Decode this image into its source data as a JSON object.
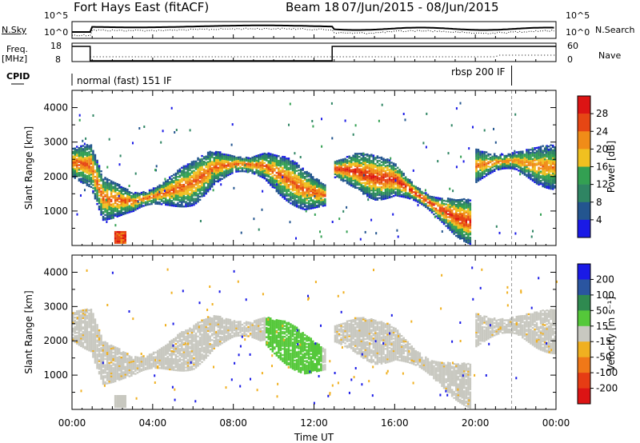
{
  "header": {
    "station": "Fort Hays East (fitACF)",
    "beam": "Beam 18",
    "dates": "07/Jun/2015 - 08/Jun/2015"
  },
  "side_labels": {
    "nsky": "N.Sky",
    "nsearch": "N.Search",
    "freq": "Freq.",
    "freq_unit": "[MHz]",
    "nave": "Nave",
    "cpid": "CPID",
    "nsky_ticks": [
      "10^5",
      "10^0"
    ],
    "nsearch_ticks": [
      "10^5",
      "10^0"
    ],
    "freq_ticks": [
      "18",
      "8"
    ],
    "nave_ticks": [
      "60",
      "0"
    ]
  },
  "cpid_labels": {
    "mode1": "normal (fast) 151 IF",
    "mode2": "rbsp 200 IF"
  },
  "colors": {
    "power": [
      "#1a1ae6",
      "#23558f",
      "#2f8563",
      "#33a052",
      "#f0c020",
      "#f08c18",
      "#e64614",
      "#dc1414"
    ],
    "velocity": [
      "#1a1ae6",
      "#2a55a0",
      "#2f8a50",
      "#55c83a",
      "#c8c8c0",
      "#f0b020",
      "#f07818",
      "#e63c14",
      "#dc1414"
    ]
  },
  "chart_data": [
    {
      "type": "line",
      "panel": "sky-noise-and-search-noise",
      "x_unit": "hours UT",
      "x_range": [
        0,
        24
      ],
      "series_ticks_left": [
        "10^5",
        "10^0"
      ],
      "series_ticks_right": [
        "10^5",
        "10^0"
      ]
    },
    {
      "type": "line",
      "panel": "frequency-and-nave",
      "x_range": [
        0,
        24
      ],
      "frequency": {
        "x": [
          0,
          0.9,
          0.9,
          12.9,
          12.9,
          24
        ],
        "y": [
          18,
          18,
          8,
          8,
          18,
          18
        ]
      },
      "ylim_left": [
        8,
        18
      ],
      "ylim_right": [
        0,
        60
      ]
    },
    {
      "type": "heatmap",
      "title": "",
      "xlabel": "",
      "ylabel": "Slant Range [km]",
      "colorbar_label": "Power [dB]",
      "colorbar_ticks": [
        "28",
        "24",
        "20",
        "16",
        "12",
        "8",
        "4"
      ],
      "colorbar_range": [
        0,
        30
      ],
      "ylim": [
        0,
        4500
      ],
      "y_ticks": [
        1000,
        2000,
        3000,
        4000
      ],
      "x_range": [
        0,
        24
      ],
      "backscatter_bands": [
        {
          "x": [
            0,
            0.9,
            1.5,
            3,
            4.5,
            6,
            7,
            8,
            9.5,
            10.5,
            11.5,
            12.5
          ],
          "y": [
            2400,
            2300,
            1350,
            1250,
            1500,
            1800,
            2250,
            2350,
            2300,
            1950,
            1600,
            1450
          ],
          "peak": 24
        },
        {
          "x": [
            13,
            14,
            15,
            16,
            17,
            18,
            19,
            19.8
          ],
          "y": [
            2200,
            2150,
            1950,
            1900,
            1500,
            1100,
            800,
            650
          ],
          "peak": 27
        },
        {
          "x": [
            20,
            21,
            22,
            23,
            24
          ],
          "y": [
            2300,
            2400,
            2450,
            2300,
            2250
          ],
          "peak": 22
        }
      ]
    },
    {
      "type": "heatmap",
      "title": "",
      "xlabel": "Time UT",
      "ylabel": "Slant Range [km]",
      "colorbar_label": "Velocity [m s⁻¹]",
      "colorbar_ticks": [
        "200",
        "100",
        "50",
        "15",
        "-15",
        "-50",
        "-100",
        "-200"
      ],
      "ylim": [
        0,
        4500
      ],
      "y_ticks": [
        1000,
        2000,
        3000,
        4000
      ],
      "x_ticks": [
        "00:00",
        "04:00",
        "08:00",
        "12:00",
        "16:00",
        "20:00",
        "00:00"
      ],
      "x_range": [
        0,
        24
      ]
    }
  ]
}
